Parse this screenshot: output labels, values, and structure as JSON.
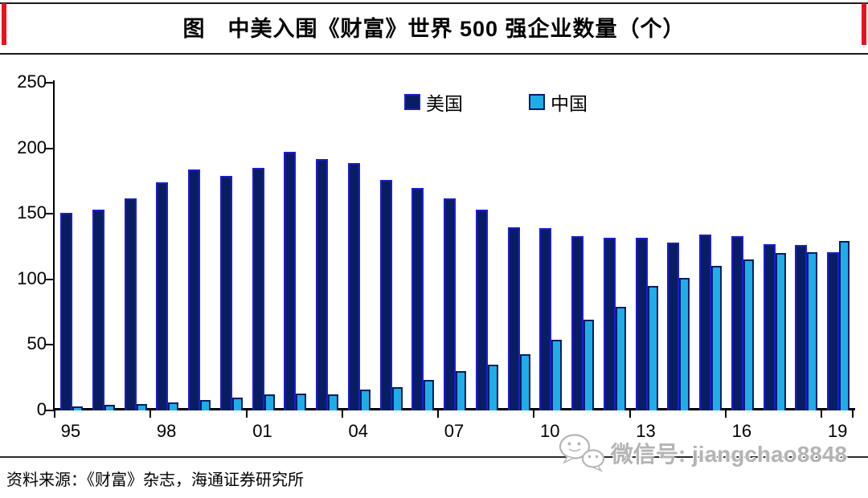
{
  "page": {
    "title": "图　中美入围《财富》世界 500 强企业数量（个）",
    "source": "资料来源：《财富》杂志，海通证券研究所",
    "watermark": "微信号: jiangchao8848"
  },
  "chart_data": {
    "type": "bar",
    "title": "中美入围《财富》世界500强企业数量（个）",
    "categories": [
      1995,
      1996,
      1997,
      1998,
      1999,
      2000,
      2001,
      2002,
      2003,
      2004,
      2005,
      2006,
      2007,
      2008,
      2009,
      2010,
      2011,
      2012,
      2013,
      2014,
      2015,
      2016,
      2017,
      2018,
      2019
    ],
    "series": [
      {
        "name": "美国",
        "color": "#081d62",
        "border_color": "#1d1dd0",
        "values": [
          151,
          153,
          162,
          174,
          184,
          179,
          185,
          197,
          192,
          189,
          176,
          170,
          162,
          153,
          140,
          139,
          133,
          132,
          132,
          128,
          134,
          133,
          127,
          126,
          121
        ]
      },
      {
        "name": "中国",
        "color": "#1fade8",
        "border_color": "#081d62",
        "values": [
          3,
          4,
          5,
          6,
          8,
          10,
          12,
          13,
          12,
          16,
          18,
          23,
          30,
          35,
          43,
          54,
          69,
          79,
          95,
          101,
          110,
          115,
          120,
          121,
          129
        ]
      }
    ],
    "xlabel": "",
    "ylabel": "",
    "ylim": [
      0,
      250
    ],
    "y_ticks": [
      0,
      50,
      100,
      150,
      200,
      250
    ],
    "x_tick_labels": [
      "95",
      "98",
      "01",
      "04",
      "07",
      "10",
      "13",
      "16",
      "19"
    ],
    "x_label_group_indices": [
      0,
      3,
      6,
      9,
      12,
      15,
      18,
      21,
      24
    ],
    "grid": false,
    "legend_position": "top-center"
  }
}
